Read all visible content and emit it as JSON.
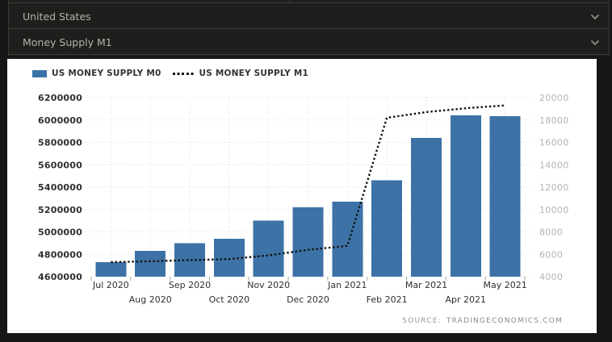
{
  "header": {
    "rows": [
      {
        "label": "United States"
      },
      {
        "label": "Money Supply M1"
      }
    ]
  },
  "legend": {
    "items": [
      {
        "label": "US MONEY SUPPLY M0",
        "swatch": "bar",
        "color": "#3d72a7"
      },
      {
        "label": "US MONEY SUPPLY M1",
        "swatch": "dotted-line",
        "color": "#111111"
      }
    ]
  },
  "source": {
    "prefix": "SOURCE:",
    "name": "TRADINGECONOMICS.COM"
  },
  "chart_data": {
    "type": "bar",
    "title": "",
    "categories": [
      "Jul 2020",
      "Aug 2020",
      "Sep 2020",
      "Oct 2020",
      "Nov 2020",
      "Dec 2020",
      "Jan 2021",
      "Feb 2021",
      "Mar 2021",
      "Apr 2021",
      "May 2021"
    ],
    "series": [
      {
        "name": "US MONEY SUPPLY M0",
        "type": "bar",
        "axis": "left",
        "color": "#3d72a7",
        "values": [
          4730000,
          4830000,
          4900000,
          4940000,
          5100000,
          5220000,
          5270000,
          5460000,
          5840000,
          6040000,
          6035000
        ]
      },
      {
        "name": "US MONEY SUPPLY M1",
        "type": "line",
        "style": "dotted",
        "axis": "right",
        "color": "#111111",
        "values": [
          5300,
          5380,
          5480,
          5570,
          5900,
          6400,
          6750,
          18200,
          18700,
          19050,
          19300
        ]
      }
    ],
    "left_axis": {
      "min": 4600000,
      "max": 6200000,
      "tick_interval": 200000,
      "ticks": [
        4600000,
        4800000,
        5000000,
        5200000,
        5400000,
        5600000,
        5800000,
        6000000,
        6200000
      ]
    },
    "right_axis": {
      "min": 4000,
      "max": 20000,
      "tick_interval": 2000,
      "ticks": [
        4000,
        6000,
        8000,
        10000,
        12000,
        14000,
        16000,
        18000,
        20000
      ]
    },
    "grid": "dotted",
    "legend_position": "top-left",
    "x_labels_staggered": true
  }
}
